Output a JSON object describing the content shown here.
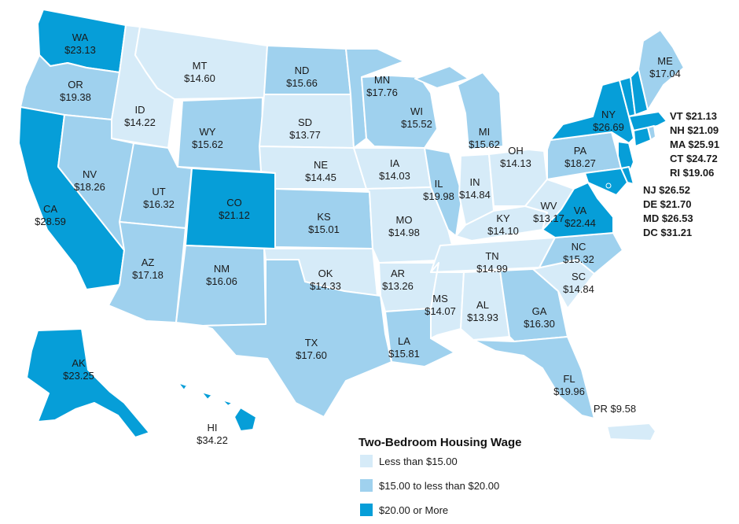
{
  "colors": {
    "low": "#d6ebf8",
    "mid": "#9fd1ee",
    "high": "#069ed8"
  },
  "legend": {
    "title": "Two-Bedroom Housing Wage",
    "items": [
      {
        "label": "Less than $15.00",
        "color": "#d6ebf8"
      },
      {
        "label": "$15.00 to less than $20.00",
        "color": "#9fd1ee"
      },
      {
        "label": "$20.00 or More",
        "color": "#069ed8"
      }
    ]
  },
  "states": [
    {
      "code": "WA",
      "wage": "$23.13",
      "tier": "high"
    },
    {
      "code": "OR",
      "wage": "$19.38",
      "tier": "mid"
    },
    {
      "code": "CA",
      "wage": "$28.59",
      "tier": "high"
    },
    {
      "code": "ID",
      "wage": "$14.22",
      "tier": "low"
    },
    {
      "code": "NV",
      "wage": "$18.26",
      "tier": "mid"
    },
    {
      "code": "MT",
      "wage": "$14.60",
      "tier": "low"
    },
    {
      "code": "WY",
      "wage": "$15.62",
      "tier": "mid"
    },
    {
      "code": "UT",
      "wage": "$16.32",
      "tier": "mid"
    },
    {
      "code": "AZ",
      "wage": "$17.18",
      "tier": "mid"
    },
    {
      "code": "CO",
      "wage": "$21.12",
      "tier": "high"
    },
    {
      "code": "NM",
      "wage": "$16.06",
      "tier": "mid"
    },
    {
      "code": "ND",
      "wage": "$15.66",
      "tier": "mid"
    },
    {
      "code": "SD",
      "wage": "$13.77",
      "tier": "low"
    },
    {
      "code": "NE",
      "wage": "$14.45",
      "tier": "low"
    },
    {
      "code": "KS",
      "wage": "$15.01",
      "tier": "mid"
    },
    {
      "code": "OK",
      "wage": "$14.33",
      "tier": "low"
    },
    {
      "code": "TX",
      "wage": "$17.60",
      "tier": "mid"
    },
    {
      "code": "MN",
      "wage": "$17.76",
      "tier": "mid"
    },
    {
      "code": "IA",
      "wage": "$14.03",
      "tier": "low"
    },
    {
      "code": "MO",
      "wage": "$14.98",
      "tier": "low"
    },
    {
      "code": "AR",
      "wage": "$13.26",
      "tier": "low"
    },
    {
      "code": "LA",
      "wage": "$15.81",
      "tier": "mid"
    },
    {
      "code": "WI",
      "wage": "$15.52",
      "tier": "mid"
    },
    {
      "code": "IL",
      "wage": "$19.98",
      "tier": "mid"
    },
    {
      "code": "MI",
      "wage": "$15.62",
      "tier": "mid"
    },
    {
      "code": "IN",
      "wage": "$14.84",
      "tier": "low"
    },
    {
      "code": "OH",
      "wage": "$14.13",
      "tier": "low"
    },
    {
      "code": "KY",
      "wage": "$14.10",
      "tier": "low"
    },
    {
      "code": "TN",
      "wage": "$14.99",
      "tier": "low"
    },
    {
      "code": "MS",
      "wage": "$14.07",
      "tier": "low"
    },
    {
      "code": "AL",
      "wage": "$13.93",
      "tier": "low"
    },
    {
      "code": "GA",
      "wage": "$16.30",
      "tier": "mid"
    },
    {
      "code": "FL",
      "wage": "$19.96",
      "tier": "mid"
    },
    {
      "code": "SC",
      "wage": "$14.84",
      "tier": "low"
    },
    {
      "code": "NC",
      "wage": "$15.32",
      "tier": "mid"
    },
    {
      "code": "WV",
      "wage": "$13.17",
      "tier": "low"
    },
    {
      "code": "VA",
      "wage": "$22.44",
      "tier": "high"
    },
    {
      "code": "PA",
      "wage": "$18.27",
      "tier": "mid"
    },
    {
      "code": "NY",
      "wage": "$26.69",
      "tier": "high"
    },
    {
      "code": "ME",
      "wage": "$17.04",
      "tier": "mid"
    },
    {
      "code": "AK",
      "wage": "$23.25",
      "tier": "high"
    },
    {
      "code": "HI",
      "wage": "$34.22",
      "tier": "high"
    }
  ],
  "small_states": [
    {
      "code": "VT",
      "wage": "$21.13",
      "tier": "high"
    },
    {
      "code": "NH",
      "wage": "$21.09",
      "tier": "high"
    },
    {
      "code": "MA",
      "wage": "$25.91",
      "tier": "high"
    },
    {
      "code": "CT",
      "wage": "$24.72",
      "tier": "high"
    },
    {
      "code": "RI",
      "wage": "$19.06",
      "tier": "mid"
    },
    {
      "code": "NJ",
      "wage": "$26.52",
      "tier": "high"
    },
    {
      "code": "DE",
      "wage": "$21.70",
      "tier": "high"
    },
    {
      "code": "MD",
      "wage": "$26.53",
      "tier": "high"
    },
    {
      "code": "DC",
      "wage": "$31.21",
      "tier": "high"
    }
  ],
  "territories": [
    {
      "code": "PR",
      "wage": "$9.58",
      "tier": "low"
    }
  ]
}
